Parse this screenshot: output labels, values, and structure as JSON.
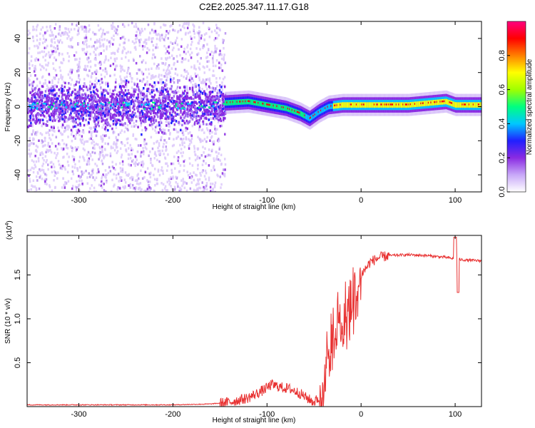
{
  "chart_data": [
    {
      "type": "heatmap",
      "title": "C2E2.2025.347.11.17.G18",
      "xlabel": "Height of straight line (km)",
      "ylabel": "Frequency (Hz)",
      "xlim": [
        -355,
        128
      ],
      "ylim": [
        -50,
        50
      ],
      "xticks": [
        -300,
        -200,
        -100,
        0,
        100
      ],
      "xtick_labels": [
        "-300",
        "-200",
        "-100",
        "0",
        "100"
      ],
      "yticks": [
        -40,
        -20,
        0,
        20,
        40
      ],
      "ytick_labels": [
        "-40",
        "-20",
        "0",
        "20",
        "40"
      ],
      "colorbar": {
        "label": "Normalized spectral amplitude",
        "range": [
          0,
          1
        ],
        "ticks": [
          0.0,
          0.2,
          0.4,
          0.6,
          0.8
        ],
        "tick_labels": [
          "0.0",
          "0.2",
          "0.4",
          "0.6",
          "0.8"
        ],
        "colors": [
          "#ffffff",
          "#c8a8f8",
          "#8a2be2",
          "#2020ff",
          "#00c8ff",
          "#00ff80",
          "#a0ff00",
          "#ffff00",
          "#ff8000",
          "#ff0000",
          "#ff0080"
        ]
      },
      "signal_track": {
        "description_points_x": [
          -355,
          -300,
          -250,
          -200,
          -150,
          -120,
          -100,
          -80,
          -65,
          -55,
          -45,
          -35,
          -20,
          0,
          50,
          90,
          100,
          128
        ],
        "center_freq_hz": [
          1,
          1,
          1,
          1,
          2,
          3,
          1,
          -1,
          -4,
          -7,
          -3,
          0,
          1,
          1,
          1,
          3,
          1,
          1
        ]
      },
      "noise_region_x": [
        -355,
        -145
      ]
    },
    {
      "type": "line",
      "title": "",
      "xlabel": "Height of straight line (km)",
      "ylabel": "SNR (10 * v/v)",
      "y_multiplier": "(x10^4)",
      "y_multiplier_base": "(x10",
      "y_multiplier_exp": "4",
      "y_multiplier_tail": ")",
      "xlim": [
        -355,
        128
      ],
      "ylim": [
        0,
        1.95
      ],
      "xticks": [
        -300,
        -200,
        -100,
        0,
        100
      ],
      "xtick_labels": [
        "-300",
        "-200",
        "-100",
        "0",
        "100"
      ],
      "yticks": [
        0.5,
        1.0,
        1.5
      ],
      "ytick_labels": [
        "0.5",
        "1.0",
        "1.5"
      ],
      "line_color": "#e83030",
      "series": [
        {
          "name": "SNR",
          "x": [
            -355,
            -300,
            -250,
            -200,
            -160,
            -140,
            -120,
            -105,
            -95,
            -85,
            -75,
            -65,
            -58,
            -50,
            -45,
            -40,
            -35,
            -30,
            -25,
            -20,
            -15,
            -10,
            -5,
            0,
            10,
            20,
            30,
            50,
            70,
            90,
            100,
            110,
            128
          ],
          "y": [
            0.02,
            0.02,
            0.02,
            0.02,
            0.03,
            0.05,
            0.1,
            0.18,
            0.25,
            0.22,
            0.2,
            0.15,
            0.1,
            0.05,
            0.1,
            0.4,
            0.7,
            0.9,
            1.0,
            1.05,
            1.1,
            1.2,
            1.35,
            1.5,
            1.65,
            1.7,
            1.72,
            1.73,
            1.72,
            1.7,
            1.68,
            1.67,
            1.66
          ]
        }
      ]
    }
  ]
}
